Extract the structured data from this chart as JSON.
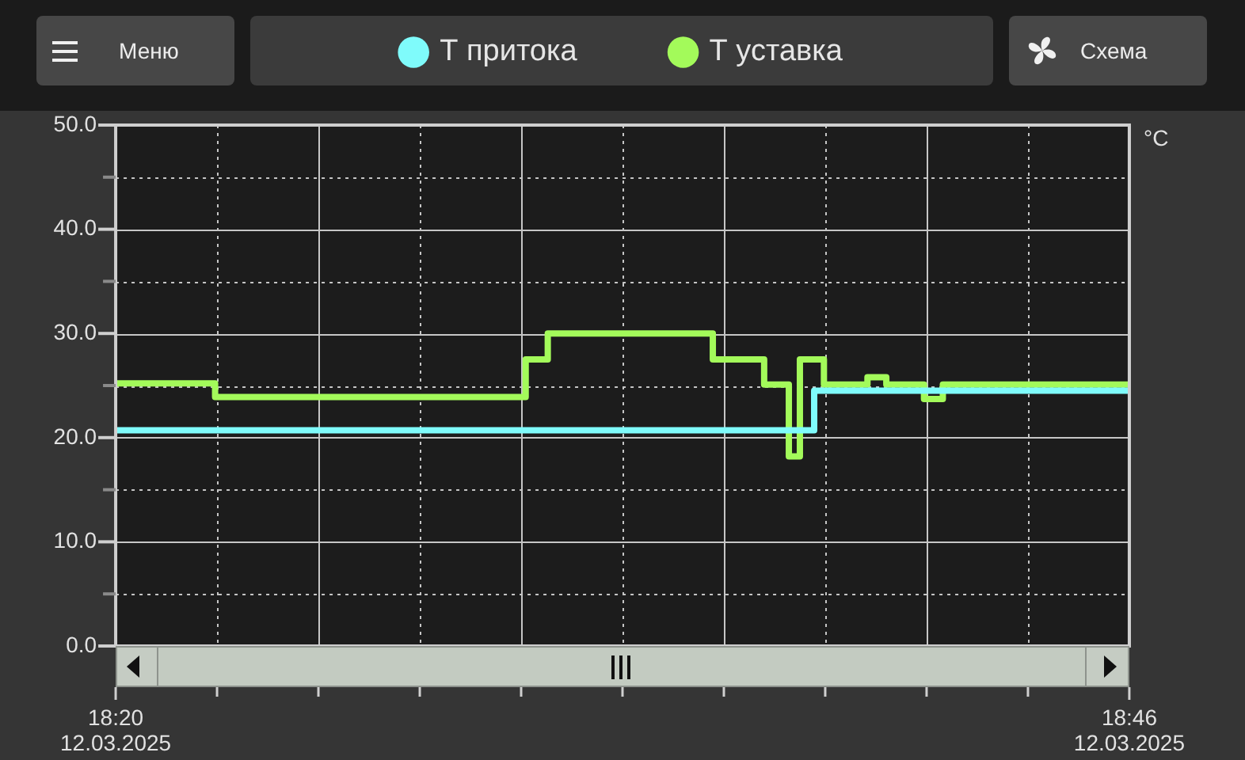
{
  "chart_data": {
    "type": "step",
    "ylabel": "°C",
    "legend": "top",
    "grid": true,
    "annotations": [
      "Меню",
      "Схема"
    ],
    "xlim": [
      "2025-03-12T18:20",
      "2025-03-12T18:46"
    ],
    "xticks": [
      {
        "value": "2025-03-12T18:20",
        "label": "18:20\n12.03.2025"
      },
      {
        "value": "2025-03-12T18:22:36",
        "label": null
      },
      {
        "value": "2025-03-12T18:25:12",
        "label": null
      },
      {
        "value": "2025-03-12T18:27:48",
        "label": null
      },
      {
        "value": "2025-03-12T18:30:24",
        "label": null
      },
      {
        "value": "2025-03-12T18:33",
        "label": null
      },
      {
        "value": "2025-03-12T18:35:36",
        "label": null
      },
      {
        "value": "2025-03-12T18:38:12",
        "label": null
      },
      {
        "value": "2025-03-12T18:40:48",
        "label": null
      },
      {
        "value": "2025-03-12T18:43:24",
        "label": null
      },
      {
        "value": "2025-03-12T18:46",
        "label": "18:46\n12.03.2025"
      }
    ],
    "ylim": [
      0,
      50
    ],
    "yticks": [
      {
        "value": 0,
        "label": "0.0"
      },
      {
        "value": 5,
        "label": null
      },
      {
        "value": 10,
        "label": "10.0"
      },
      {
        "value": 15,
        "label": null
      },
      {
        "value": 20,
        "label": "20.0"
      },
      {
        "value": 25,
        "label": null
      },
      {
        "value": 30,
        "label": "30.0"
      },
      {
        "value": 35,
        "label": null
      },
      {
        "value": 40,
        "label": "40.0"
      },
      {
        "value": 45,
        "label": null
      },
      {
        "value": 50,
        "label": "50.0"
      }
    ],
    "series": [
      {
        "name": "Т притока",
        "color": "#7ffbfb",
        "x": [
          "2025-03-12T18:20",
          "2025-03-12T18:37:55",
          "2025-03-12T18:46"
        ],
        "values": [
          20.7,
          24.5,
          24.5
        ]
      },
      {
        "name": "Т уставка",
        "color": "#a3fa5a",
        "x": [
          "2025-03-12T18:20",
          "2025-03-12T18:22:33",
          "2025-03-12T18:30:31",
          "2025-03-12T18:31:05",
          "2025-03-12T18:35:19",
          "2025-03-12T18:36:38",
          "2025-03-12T18:37:16",
          "2025-03-12T18:37:33",
          "2025-03-12T18:38:10",
          "2025-03-12T18:39:17",
          "2025-03-12T18:39:46",
          "2025-03-12T18:40:44",
          "2025-03-12T18:41:13",
          "2025-03-12T18:46"
        ],
        "values": [
          25.2,
          23.9,
          27.5,
          30,
          27.5,
          25.1,
          18.2,
          27.5,
          25.1,
          25.8,
          25.1,
          23.7,
          25.1,
          25.1
        ]
      }
    ]
  }
}
